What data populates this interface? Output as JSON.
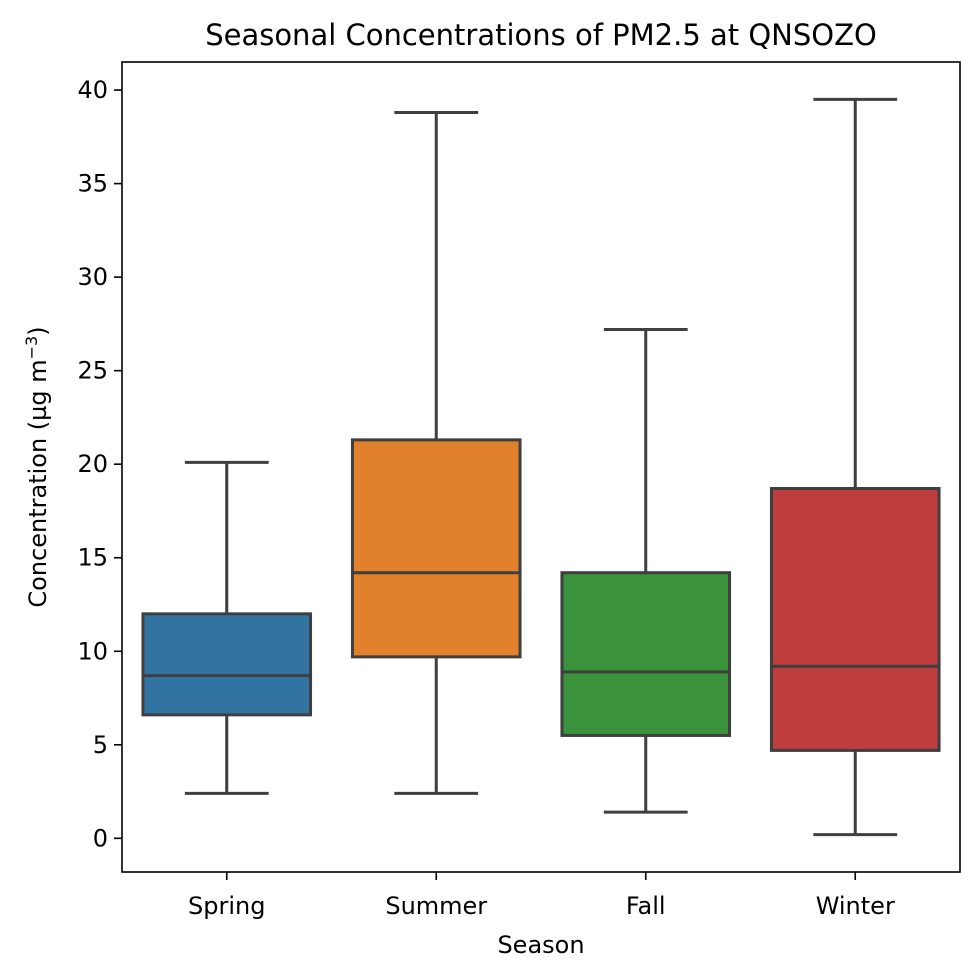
{
  "chart_data": {
    "type": "box",
    "title": "Seasonal Concentrations of PM2.5 at QNSOZO",
    "xlabel": "Season",
    "ylabel": "Concentration (µg m",
    "ylabel_superscript": "−3",
    "ylabel_suffix": ")",
    "ylim": [
      -1.8,
      41.5
    ],
    "yticks": [
      0,
      5,
      10,
      15,
      20,
      25,
      30,
      35,
      40
    ],
    "categories": [
      "Spring",
      "Summer",
      "Fall",
      "Winter"
    ],
    "boxes": [
      {
        "category": "Spring",
        "whisker_low": 2.4,
        "q1": 6.6,
        "median": 8.7,
        "q3": 12.0,
        "whisker_high": 20.1,
        "color": "#3274a1"
      },
      {
        "category": "Summer",
        "whisker_low": 2.4,
        "q1": 9.7,
        "median": 14.2,
        "q3": 21.3,
        "whisker_high": 38.8,
        "color": "#e1812c"
      },
      {
        "category": "Fall",
        "whisker_low": 1.4,
        "q1": 5.5,
        "median": 8.9,
        "q3": 14.2,
        "whisker_high": 27.2,
        "color": "#3a923a"
      },
      {
        "category": "Winter",
        "whisker_low": 0.2,
        "q1": 4.7,
        "median": 9.2,
        "q3": 18.7,
        "whisker_high": 39.5,
        "color": "#c03d3e"
      }
    ],
    "grid": false,
    "legend": "none"
  }
}
